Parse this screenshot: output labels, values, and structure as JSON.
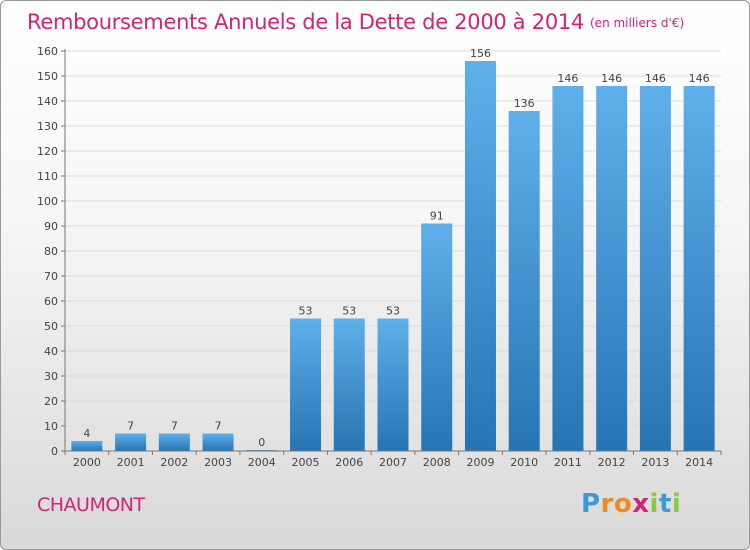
{
  "title": "Remboursements Annuels de la Dette de 2000 à 2014",
  "subtitle": "(en milliers d'€)",
  "place": "CHAUMONT",
  "logo": {
    "text": "Proxiti",
    "letters": [
      {
        "ch": "P",
        "color": "#3d9ad8"
      },
      {
        "ch": "r",
        "color": "#f08a1c"
      },
      {
        "ch": "o",
        "color": "#f08a1c"
      },
      {
        "ch": "x",
        "color": "#d2227a"
      },
      {
        "ch": "i",
        "color": "#8dc63f"
      },
      {
        "ch": "t",
        "color": "#3d9ad8"
      },
      {
        "ch": "i",
        "color": "#8dc63f"
      }
    ]
  },
  "colors": {
    "accent": "#d2227a",
    "bar": "#3d9ad8",
    "bar_light": "#5fb0ea",
    "bar_dark": "#2774b3",
    "grid": "#dcdcdc"
  },
  "chart_data": {
    "type": "bar",
    "title": "Remboursements Annuels de la Dette de 2000 à 2014",
    "subtitle": "(en milliers d'€)",
    "categories": [
      "2000",
      "2001",
      "2002",
      "2003",
      "2004",
      "2005",
      "2006",
      "2007",
      "2008",
      "2009",
      "2010",
      "2011",
      "2012",
      "2013",
      "2014"
    ],
    "values": [
      4,
      7,
      7,
      7,
      0,
      53,
      53,
      53,
      91,
      156,
      136,
      146,
      146,
      146,
      146
    ],
    "ylim": [
      0,
      160
    ],
    "yticks": [
      0,
      10,
      20,
      30,
      40,
      50,
      60,
      70,
      80,
      90,
      100,
      110,
      120,
      130,
      140,
      150,
      160
    ],
    "grid": true,
    "data_labels": true
  }
}
